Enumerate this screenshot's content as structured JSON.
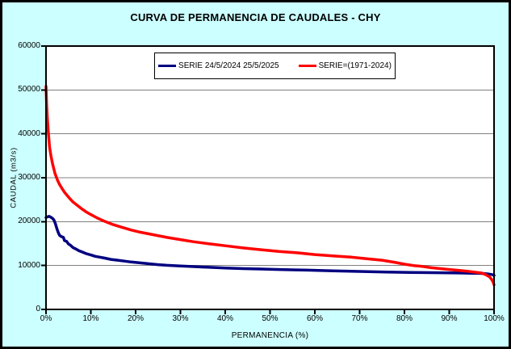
{
  "window": {
    "background_color": "#CCFFFF",
    "border_color": "#000000"
  },
  "chart_data": {
    "type": "line",
    "title": "CURVA DE PERMANENCIA DE CAUDALES - CHY",
    "xlabel": "PERMANENCIA (%)",
    "ylabel": "CAUDAL (m3/s)",
    "xlim": [
      0,
      100
    ],
    "ylim": [
      0,
      60000
    ],
    "x_tick_labels": [
      "0%",
      "10%",
      "20%",
      "30%",
      "40%",
      "50%",
      "60%",
      "70%",
      "80%",
      "90%",
      "100%"
    ],
    "y_tick_labels": [
      "0",
      "10000",
      "20000",
      "30000",
      "40000",
      "50000",
      "60000"
    ],
    "grid": "horizontal-only",
    "grid_color": "#808080",
    "axis_color": "#000000",
    "plot_background": "#FFFFFF",
    "legend": {
      "position": "top-center-inside",
      "background": "#FFFFFF",
      "border_color": "#000000"
    },
    "series": [
      {
        "name": "SERIE 24/5/2024 25/5/2025",
        "color": "#000080",
        "points": [
          [
            0,
            20900
          ],
          [
            0.3,
            21100
          ],
          [
            0.7,
            21200
          ],
          [
            1.1,
            21000
          ],
          [
            1.5,
            20700
          ],
          [
            1.8,
            20300
          ],
          [
            2.1,
            19500
          ],
          [
            2.4,
            18500
          ],
          [
            2.7,
            17600
          ],
          [
            3.0,
            16900
          ],
          [
            3.4,
            16600
          ],
          [
            3.9,
            16400
          ],
          [
            4.1,
            15700
          ],
          [
            4.6,
            15500
          ],
          [
            5.0,
            14900
          ],
          [
            5.5,
            14600
          ],
          [
            6.0,
            14100
          ],
          [
            6.6,
            13800
          ],
          [
            7.3,
            13400
          ],
          [
            8,
            13100
          ],
          [
            9,
            12700
          ],
          [
            10,
            12400
          ],
          [
            11,
            12100
          ],
          [
            12,
            11900
          ],
          [
            13,
            11700
          ],
          [
            14.5,
            11400
          ],
          [
            16,
            11200
          ],
          [
            17.5,
            11000
          ],
          [
            19,
            10800
          ],
          [
            21,
            10600
          ],
          [
            23,
            10400
          ],
          [
            25,
            10200
          ],
          [
            27,
            10050
          ],
          [
            30,
            9900
          ],
          [
            33,
            9750
          ],
          [
            36,
            9600
          ],
          [
            40,
            9450
          ],
          [
            44,
            9300
          ],
          [
            48,
            9200
          ],
          [
            52,
            9100
          ],
          [
            56,
            9000
          ],
          [
            60,
            8900
          ],
          [
            64,
            8800
          ],
          [
            68,
            8700
          ],
          [
            72,
            8600
          ],
          [
            76,
            8500
          ],
          [
            80,
            8450
          ],
          [
            84,
            8400
          ],
          [
            88,
            8350
          ],
          [
            92,
            8300
          ],
          [
            95,
            8250
          ],
          [
            97,
            8200
          ],
          [
            98.5,
            8100
          ],
          [
            99.5,
            7950
          ],
          [
            100,
            7750
          ]
        ]
      },
      {
        "name": "SERIE=(1971-2024)",
        "color": "#FF0000",
        "points": [
          [
            0,
            50800
          ],
          [
            0.15,
            46500
          ],
          [
            0.3,
            43500
          ],
          [
            0.5,
            40500
          ],
          [
            0.8,
            37000
          ],
          [
            1.1,
            35000
          ],
          [
            1.5,
            33000
          ],
          [
            2,
            31000
          ],
          [
            2.5,
            29600
          ],
          [
            3,
            28500
          ],
          [
            3.6,
            27500
          ],
          [
            4.2,
            26600
          ],
          [
            5,
            25600
          ],
          [
            6,
            24500
          ],
          [
            7,
            23700
          ],
          [
            8,
            22900
          ],
          [
            9,
            22200
          ],
          [
            10,
            21600
          ],
          [
            11.5,
            20800
          ],
          [
            13,
            20100
          ],
          [
            15,
            19300
          ],
          [
            17,
            18700
          ],
          [
            19,
            18100
          ],
          [
            21,
            17600
          ],
          [
            24,
            17000
          ],
          [
            27,
            16400
          ],
          [
            30,
            15900
          ],
          [
            33,
            15400
          ],
          [
            36,
            15000
          ],
          [
            40,
            14500
          ],
          [
            44,
            14000
          ],
          [
            48,
            13600
          ],
          [
            52,
            13200
          ],
          [
            56,
            12900
          ],
          [
            60,
            12500
          ],
          [
            64,
            12200
          ],
          [
            68,
            11900
          ],
          [
            72,
            11500
          ],
          [
            75,
            11200
          ],
          [
            78,
            10700
          ],
          [
            80,
            10300
          ],
          [
            82,
            10000
          ],
          [
            84,
            9800
          ],
          [
            86,
            9500
          ],
          [
            88,
            9300
          ],
          [
            90,
            9100
          ],
          [
            92,
            8900
          ],
          [
            94,
            8700
          ],
          [
            96,
            8450
          ],
          [
            97.2,
            8300
          ],
          [
            98.2,
            7900
          ],
          [
            99,
            7400
          ],
          [
            99.5,
            6800
          ],
          [
            99.8,
            6200
          ],
          [
            100,
            5600
          ]
        ]
      }
    ]
  }
}
